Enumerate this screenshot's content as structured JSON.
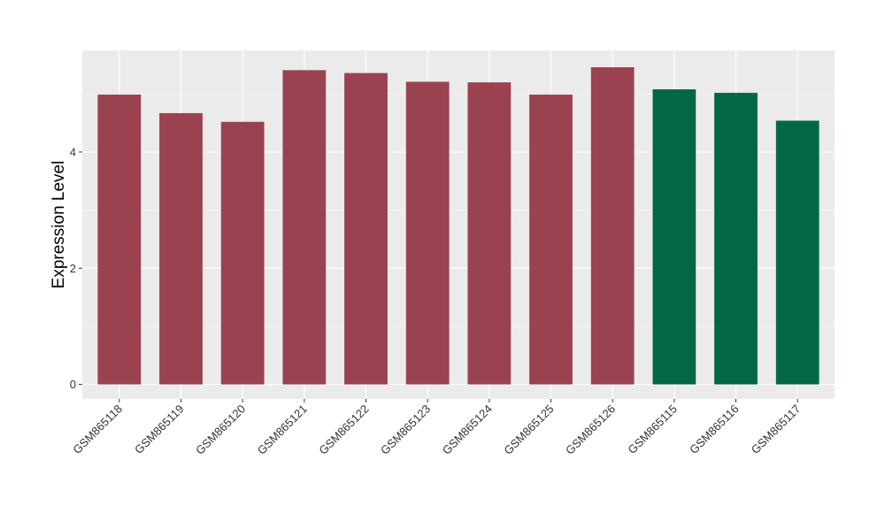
{
  "chart_data": {
    "type": "bar",
    "title": "",
    "xlabel": "",
    "ylabel": "Expression Level",
    "categories": [
      "GSM865118",
      "GSM865119",
      "GSM865120",
      "GSM865121",
      "GSM865122",
      "GSM865123",
      "GSM865124",
      "GSM865125",
      "GSM865126",
      "GSM865115",
      "GSM865116",
      "GSM865117"
    ],
    "values": [
      4.99,
      4.67,
      4.52,
      5.41,
      5.36,
      5.21,
      5.2,
      4.99,
      5.46,
      5.08,
      5.02,
      4.54
    ],
    "groups": [
      "a",
      "a",
      "a",
      "a",
      "a",
      "a",
      "a",
      "a",
      "a",
      "b",
      "b",
      "b"
    ],
    "group_colors": {
      "a": "#9A4250",
      "b": "#026844"
    },
    "yticks": [
      0,
      2,
      4
    ],
    "ylim": [
      -0.25,
      5.75
    ],
    "grid": true,
    "panel_background": "#EBEBEB",
    "grid_color": "#FFFFFF"
  }
}
